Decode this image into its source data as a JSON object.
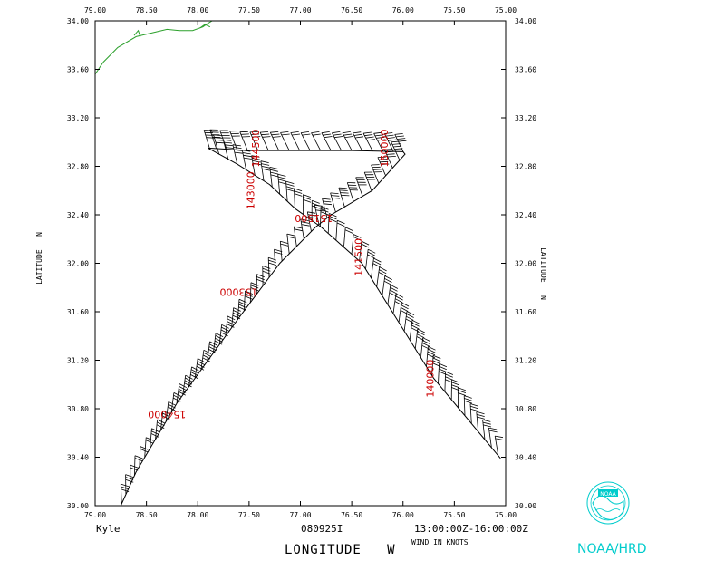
{
  "plot": {
    "storm_name": "Kyle",
    "flight_id": "080925I",
    "time_range": "13:00:00Z-16:00:00Z",
    "units_note": "WIND IN KNOTS",
    "x_axis_label": "LONGITUDE   W",
    "y_axis_label_left": "LATITUDE   N",
    "y_axis_label_right": "LATITUDE   N",
    "org_label": "NOAA/HRD",
    "logo_text": "NOAA",
    "lon_range": [
      79.0,
      75.0
    ],
    "lat_range": [
      30.0,
      34.0
    ],
    "x_ticks": [
      "79.00",
      "78.50",
      "78.00",
      "77.50",
      "77.00",
      "76.50",
      "76.00",
      "75.50",
      "75.00"
    ],
    "y_ticks": [
      "34.00",
      "33.60",
      "33.20",
      "32.80",
      "32.40",
      "32.00",
      "31.60",
      "31.20",
      "30.80",
      "30.40",
      "30.00"
    ]
  },
  "time_labels": [
    {
      "text": "140000",
      "lon": 75.7,
      "lat": 31.05,
      "rot": -90
    },
    {
      "text": "141500",
      "lon": 76.4,
      "lat": 32.05,
      "rot": -90
    },
    {
      "text": "143000",
      "lon": 77.45,
      "lat": 32.6,
      "rot": -90
    },
    {
      "text": "144500",
      "lon": 77.4,
      "lat": 32.95,
      "rot": -90
    },
    {
      "text": "150000",
      "lon": 76.15,
      "lat": 32.95,
      "rot": -90
    },
    {
      "text": "151500",
      "lon": 76.87,
      "lat": 32.4,
      "rot": 180
    },
    {
      "text": "153000",
      "lon": 77.6,
      "lat": 31.79,
      "rot": 180
    },
    {
      "text": "154000",
      "lon": 78.3,
      "lat": 30.78,
      "rot": 180
    }
  ],
  "colors": {
    "axes": "#000000",
    "track": "#000000",
    "barbs": "#000000",
    "time_labels": "#cc0000",
    "coastline": "#2ca02c",
    "org": "#00cccc"
  }
}
